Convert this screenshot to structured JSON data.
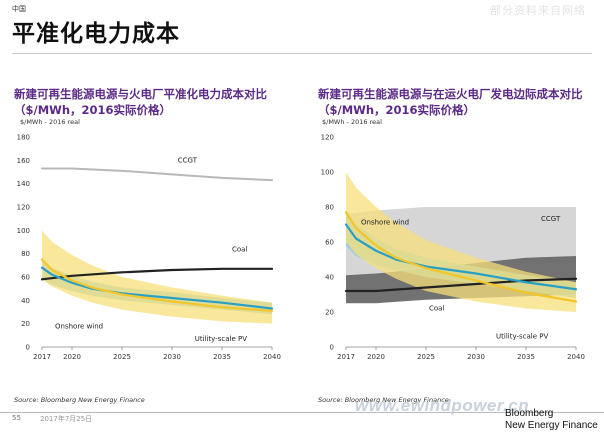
{
  "header": {
    "region": "中国",
    "title": "平准化电力成本",
    "corner_tag": "部分资料来自网络"
  },
  "charts": [
    {
      "title_line1": "新建可再生能源电源与火电厂平准化电力成本对比",
      "title_line2": "（$/MWh，2016实际价格）",
      "unit_label": "$/MWh - 2016 real",
      "source": "Source: Bloomberg New Energy Finance"
    },
    {
      "title_line1": "新建可再生能源电源与在运火电厂发电边际成本对比",
      "title_line2": "（$/MWh，2016实际价格）",
      "unit_label": "$/MWh - 2016 real",
      "source": "Source: Bloomberg New Energy Finance"
    }
  ],
  "footer": {
    "page_number": "55",
    "date": "2017年7月25日",
    "watermark": "www.ewindpower.cn",
    "brand_line1": "Bloomberg",
    "brand_line2": "New Energy Finance"
  },
  "colors": {
    "title_purple": "#5b2a86",
    "solar_yellow": "#f2c62a",
    "solar_band": "#f7df7a",
    "wind_blue": "#2a9fc4",
    "wind_band": "#8fcde0",
    "coal_black": "#222222",
    "coal_band": "#6a6a6a",
    "ccgt_gray": "#b9b9b9",
    "ccgt_band": "#d2d2d2"
  },
  "chart_data": [
    {
      "type": "area",
      "ylabel": "$/MWh - 2016 real",
      "ylim": [
        0,
        180
      ],
      "yticks": [
        0,
        20,
        40,
        60,
        80,
        100,
        120,
        140,
        160,
        180
      ],
      "xlim": [
        2017,
        2040
      ],
      "xticks": [
        2017,
        2020,
        2025,
        2030,
        2035,
        2040
      ],
      "grid": false,
      "series": [
        {
          "name": "CCGT",
          "kind": "line",
          "x": [
            2017,
            2020,
            2025,
            2030,
            2035,
            2040
          ],
          "y": [
            153,
            153,
            151,
            148,
            145,
            143
          ]
        },
        {
          "name": "Coal",
          "kind": "line",
          "x": [
            2017,
            2020,
            2025,
            2030,
            2035,
            2040
          ],
          "y": [
            58,
            61,
            64,
            66,
            67,
            67
          ]
        },
        {
          "name": "Onshore wind",
          "kind": "line_band",
          "x": [
            2017,
            2018,
            2020,
            2022,
            2025,
            2030,
            2035,
            2040
          ],
          "y": [
            68,
            62,
            55,
            50,
            46,
            42,
            38,
            33
          ],
          "low": [
            58,
            53,
            48,
            44,
            40,
            36,
            32,
            28
          ],
          "high": [
            74,
            68,
            61,
            56,
            51,
            47,
            42,
            38
          ]
        },
        {
          "name": "Utility-scale PV",
          "kind": "line_band",
          "x": [
            2017,
            2018,
            2020,
            2022,
            2025,
            2030,
            2035,
            2040
          ],
          "y": [
            75,
            66,
            57,
            51,
            45,
            39,
            34,
            31
          ],
          "low": [
            58,
            52,
            44,
            38,
            32,
            26,
            22,
            20
          ],
          "high": [
            100,
            90,
            79,
            70,
            60,
            51,
            44,
            38
          ]
        }
      ]
    },
    {
      "type": "area",
      "ylabel": "$/MWh - 2016 real",
      "ylim": [
        0,
        120
      ],
      "yticks": [
        0,
        20,
        40,
        60,
        80,
        100,
        120
      ],
      "xlim": [
        2017,
        2040
      ],
      "xticks": [
        2017,
        2020,
        2025,
        2030,
        2035,
        2040
      ],
      "grid": false,
      "series": [
        {
          "name": "CCGT",
          "kind": "band",
          "x": [
            2017,
            2020,
            2025,
            2030,
            2035,
            2040
          ],
          "low": [
            38,
            42,
            46,
            48,
            48,
            48
          ],
          "high": [
            76,
            78,
            80,
            80,
            80,
            80
          ]
        },
        {
          "name": "Coal",
          "kind": "line_band",
          "x": [
            2017,
            2020,
            2025,
            2030,
            2035,
            2040
          ],
          "y": [
            32,
            32,
            34,
            36,
            38,
            39
          ],
          "low": [
            25,
            25,
            27,
            28,
            29,
            30
          ],
          "high": [
            41,
            42,
            45,
            48,
            51,
            52
          ]
        },
        {
          "name": "Onshore wind",
          "kind": "line_band",
          "x": [
            2017,
            2018,
            2020,
            2022,
            2025,
            2030,
            2035,
            2040
          ],
          "y": [
            70,
            62,
            55,
            50,
            46,
            42,
            37,
            33
          ],
          "low": [
            58,
            52,
            47,
            44,
            40,
            36,
            32,
            28
          ],
          "high": [
            76,
            70,
            62,
            56,
            51,
            46,
            41,
            37
          ]
        },
        {
          "name": "Utility-scale PV",
          "kind": "line_band",
          "x": [
            2017,
            2018,
            2020,
            2022,
            2025,
            2030,
            2035,
            2040
          ],
          "y": [
            77,
            68,
            58,
            51,
            45,
            38,
            31,
            26
          ],
          "low": [
            60,
            53,
            45,
            39,
            32,
            26,
            22,
            20
          ],
          "high": [
            100,
            91,
            80,
            71,
            61,
            51,
            43,
            37
          ]
        }
      ]
    }
  ]
}
